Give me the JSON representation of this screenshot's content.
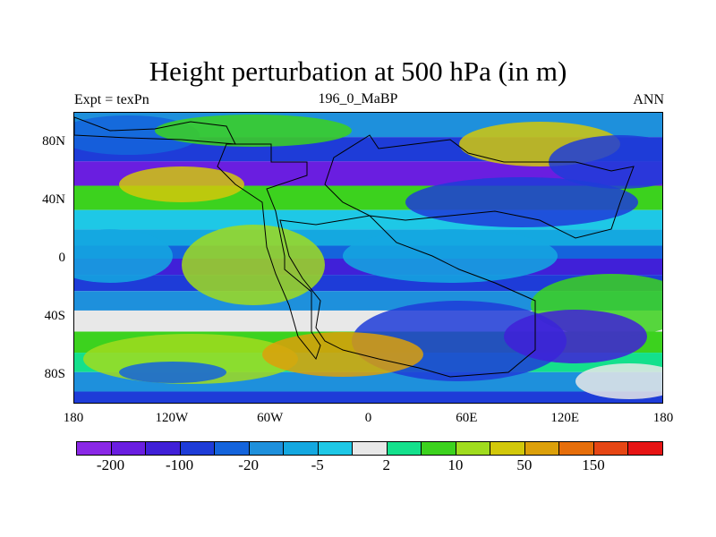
{
  "header": {
    "title": "Height perturbation at 500 hPa (in m)",
    "left_label": "Expt = texPn",
    "center_label": "196_0_MaBP",
    "right_label": "ANN"
  },
  "map": {
    "x_ticks": [
      "180",
      "120W",
      "60W",
      "0",
      "60E",
      "120E",
      "180"
    ],
    "y_ticks": [
      "80N",
      "40N",
      "0",
      "40S",
      "80S"
    ],
    "bands": [
      {
        "lat": 90,
        "level": 5
      },
      {
        "lat": 75,
        "level": 3
      },
      {
        "lat": 60,
        "level": 1
      },
      {
        "lat": 45,
        "level": 10
      },
      {
        "lat": 30,
        "level": 7
      },
      {
        "lat": 18,
        "level": 6
      },
      {
        "lat": 8,
        "level": 4
      },
      {
        "lat": 0,
        "level": 2
      },
      {
        "lat": -10,
        "level": 3
      },
      {
        "lat": -20,
        "level": 5
      },
      {
        "lat": -32,
        "level": 8
      },
      {
        "lat": -45,
        "level": 10
      },
      {
        "lat": -58,
        "level": 9
      },
      {
        "lat": -70,
        "level": 5
      },
      {
        "lat": -82,
        "level": 3
      },
      {
        "lat": -90,
        "level": 2
      }
    ]
  },
  "colorbar": {
    "colors": [
      "#8a28e6",
      "#6a1ee0",
      "#4020d8",
      "#1e3cd8",
      "#1464dc",
      "#1e90dc",
      "#14a8e0",
      "#1ec8e6",
      "#e8e8e8",
      "#14e08c",
      "#3cd21e",
      "#a0dc1e",
      "#d2c80a",
      "#dca00a",
      "#e66e0a",
      "#e64614",
      "#e61414"
    ],
    "labels": [
      {
        "text": "-200",
        "boundary": 1
      },
      {
        "text": "-100",
        "boundary": 3
      },
      {
        "text": "-20",
        "boundary": 5
      },
      {
        "text": "-5",
        "boundary": 7
      },
      {
        "text": "2",
        "boundary": 9
      },
      {
        "text": "10",
        "boundary": 11
      },
      {
        "text": "50",
        "boundary": 13
      },
      {
        "text": "150",
        "boundary": 15
      }
    ]
  }
}
